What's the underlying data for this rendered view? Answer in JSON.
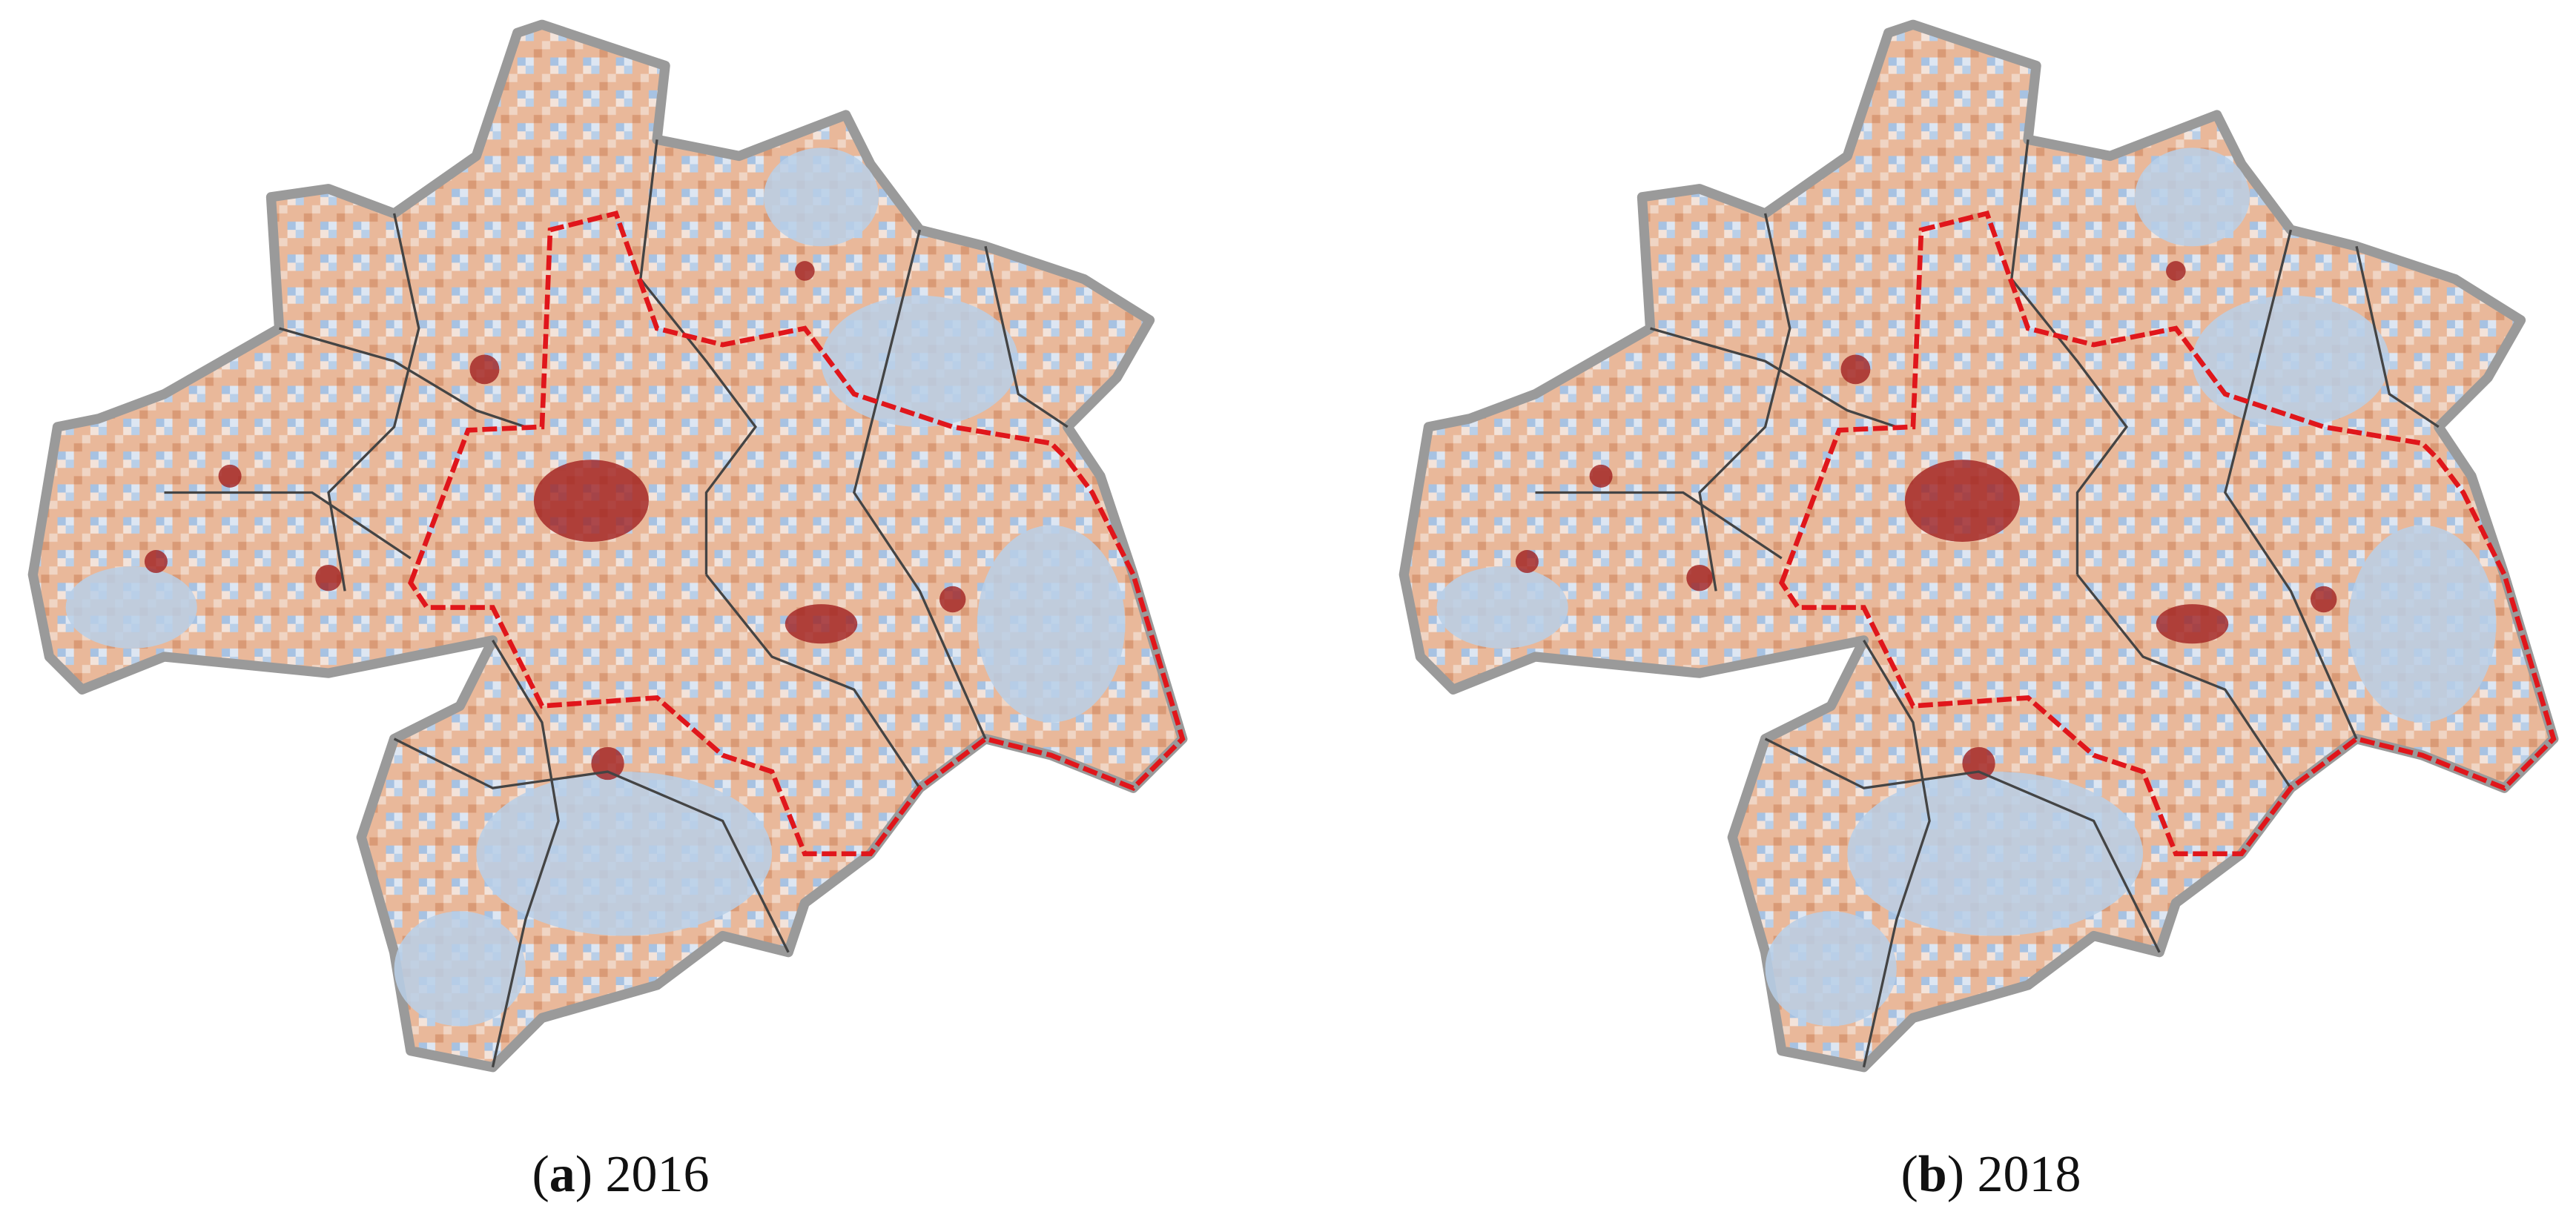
{
  "panels": [
    {
      "prefix": "(",
      "letter": "a",
      "suffix": ") 2016"
    },
    {
      "prefix": "(",
      "letter": "b",
      "suffix": ") 2018"
    }
  ]
}
